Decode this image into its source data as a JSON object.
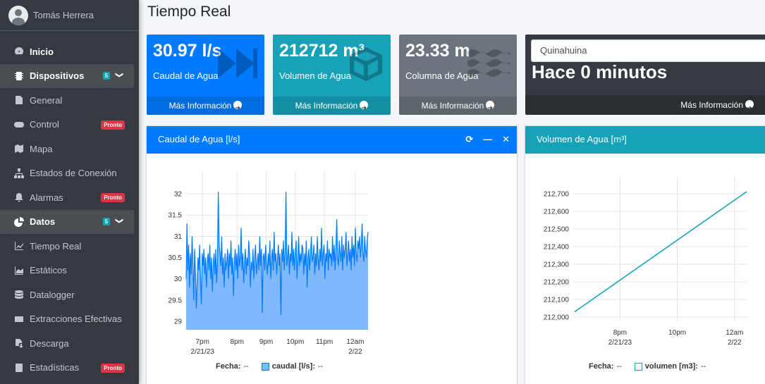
{
  "user": {
    "name": "Tomás Herrera"
  },
  "nav": [
    {
      "label": "Inicio",
      "icon": "dashboard-icon",
      "bold": true
    },
    {
      "label": "Dispositivos",
      "icon": "device-icon",
      "open": true,
      "count": "5"
    },
    {
      "label": "General",
      "icon": "file-icon"
    },
    {
      "label": "Control",
      "icon": "gamepad-icon",
      "badge": "Pronto"
    },
    {
      "label": "Mapa",
      "icon": "map-icon"
    },
    {
      "label": "Estados de Conexión",
      "icon": "sitemap-icon"
    },
    {
      "label": "Alarmas",
      "icon": "bell-icon",
      "badge": "Pronto"
    },
    {
      "label": "Datos",
      "icon": "pie-chart-icon",
      "open": true,
      "count": "5"
    },
    {
      "label": "Tiempo Real",
      "icon": "line-chart-icon"
    },
    {
      "label": "Estáticos",
      "icon": "area-chart-icon"
    },
    {
      "label": "Datalogger",
      "icon": "database-icon"
    },
    {
      "label": "Extracciones Efectivas",
      "icon": "envelope-icon"
    },
    {
      "label": "Descarga",
      "icon": "download-icon"
    },
    {
      "label": "Estadísticas",
      "icon": "calculator-icon",
      "badge": "Pronto"
    }
  ],
  "header": {
    "title": "Tiempo Real"
  },
  "boxes": {
    "caudal": {
      "value": "30.97 l/s",
      "label": "Caudal de Agua",
      "more": "Más Información"
    },
    "volumen": {
      "value": "212712 m³",
      "label": "Volumen de Agua",
      "more": "Más Información"
    },
    "columna": {
      "value": "23.33 m",
      "label": "Columna de Agua",
      "more": "Más Información"
    },
    "estado": {
      "location": "Quinahuina",
      "value": "Hace 0 minutos",
      "more": "Más Información"
    }
  },
  "cards": {
    "caudal_title": "Caudal de Agua [l/s]",
    "volumen_title": "Volumen de Agua [m³]",
    "caudal_legend_label": "Fecha:",
    "caudal_legend_value": "--",
    "caudal_series_label": "caudal [l/s]:",
    "caudal_series_value": "--",
    "volumen_legend_label": "Fecha:",
    "volumen_legend_value": "--",
    "volumen_series_label": "volumen [m3]:",
    "volumen_series_value": "--"
  },
  "colors": {
    "primary": "#007bff",
    "info": "#17a2b8",
    "secondary": "#6c757d",
    "dark": "#343a40",
    "danger": "#dc3545"
  },
  "chart_data": [
    {
      "type": "area",
      "title": "Caudal de Agua [l/s]",
      "ylim": [
        28.8,
        32.2
      ],
      "yticks": [
        29,
        29.5,
        30,
        30.5,
        31,
        31.5,
        32
      ],
      "xticks": [
        {
          "label": "7pm",
          "sub": "2/21/23",
          "t": 0.09
        },
        {
          "label": "8pm",
          "sub": "",
          "t": 0.28
        },
        {
          "label": "9pm",
          "sub": "",
          "t": 0.44
        },
        {
          "label": "10pm",
          "sub": "",
          "t": 0.6
        },
        {
          "label": "11pm",
          "sub": "",
          "t": 0.76
        },
        {
          "label": "12am",
          "sub": "2/22",
          "t": 0.93
        }
      ],
      "series": [
        {
          "name": "caudal [l/s]",
          "color": "#007bff",
          "values": [
            30.0,
            31.3,
            30.2,
            30.8,
            29.8,
            30.6,
            30.1,
            31.0,
            30.4,
            29.5,
            30.7,
            30.2,
            30.9,
            29.9,
            30.5,
            30.2,
            30.8,
            30.0,
            29.4,
            30.6,
            30.3,
            30.7,
            30.1,
            30.5,
            29.8,
            30.4,
            30.6,
            30.2,
            30.8,
            30.0,
            30.5,
            29.7,
            30.3,
            30.6,
            30.1,
            30.7,
            29.9,
            30.4,
            30.2,
            30.8,
            30.6,
            30.3,
            31.0,
            30.1,
            30.5,
            29.8,
            30.6,
            30.2,
            30.4,
            30.7,
            30.0,
            30.6,
            30.3,
            30.9,
            30.1,
            30.5,
            29.6,
            30.4,
            30.7,
            30.2,
            30.6,
            30.0,
            30.8,
            30.3,
            30.5,
            31.2,
            30.2,
            30.6,
            29.9,
            30.4,
            30.7,
            30.1,
            30.5,
            30.3,
            30.9,
            30.6,
            29.8,
            30.4,
            30.2,
            30.7,
            30.0,
            30.5,
            30.8,
            30.1,
            30.4,
            30.6,
            30.2,
            31.0,
            30.3,
            30.7,
            29.9,
            30.5,
            30.6,
            30.2,
            30.8,
            30.4,
            30.1,
            30.6,
            30.3,
            30.9,
            30.0,
            30.5,
            30.7,
            30.2,
            31.1,
            30.4,
            30.6,
            30.1,
            30.5,
            30.8,
            30.3,
            30.6,
            30.0,
            30.7,
            30.4,
            30.9,
            30.2,
            30.6,
            31.0,
            30.3,
            30.5,
            30.8,
            30.1,
            30.6,
            30.4,
            31.1,
            30.3,
            30.7,
            30.2,
            30.6,
            30.9,
            30.0,
            30.5,
            31.0,
            30.3,
            30.6,
            30.4,
            30.8,
            30.7,
            30.1,
            30.6,
            30.3,
            30.9,
            29.8,
            30.5,
            30.7,
            30.2,
            30.6,
            31.0,
            30.4,
            30.5,
            30.8,
            30.1,
            30.6,
            30.3,
            31.0,
            30.5,
            30.2,
            30.7,
            30.4,
            31.2,
            30.3,
            30.6,
            30.8,
            30.0,
            30.6,
            30.4,
            30.9,
            30.2,
            30.7,
            30.5,
            30.6,
            30.3,
            31.0,
            30.4,
            30.8,
            30.2,
            30.7,
            31.4,
            30.5,
            30.3,
            30.9,
            30.6,
            30.4,
            31.0,
            30.2,
            30.8,
            30.5,
            30.7,
            31.1,
            30.3,
            30.6,
            30.9,
            30.4,
            30.7,
            30.2,
            31.0,
            30.5,
            30.8,
            30.3,
            31.2,
            30.6,
            30.4,
            30.9,
            30.7,
            31.0,
            30.5,
            30.8,
            31.3,
            30.6,
            30.4,
            31.0,
            30.7,
            30.5,
            30.9,
            31.1
          ]
        }
      ],
      "spikes": [
        {
          "i": 38,
          "v": 32.05
        },
        {
          "i": 112,
          "v": 29.15
        },
        {
          "i": 118,
          "v": 32.05
        },
        {
          "i": 90,
          "v": 29.2
        },
        {
          "i": 12,
          "v": 29.3
        }
      ]
    },
    {
      "type": "line",
      "title": "Volumen de Agua [m³]",
      "ylim": [
        211980,
        212720
      ],
      "yticks": [
        212000,
        212100,
        212200,
        212300,
        212400,
        212500,
        212600,
        212700
      ],
      "yticklabels": [
        "212,000",
        "212,100",
        "212,200",
        "212,300",
        "212,400",
        "212,500",
        "212,600",
        "212,700"
      ],
      "xticks": [
        {
          "label": "8pm",
          "sub": "2/21/23",
          "t": 0.27
        },
        {
          "label": "10pm",
          "sub": "",
          "t": 0.6
        },
        {
          "label": "12am",
          "sub": "2/22",
          "t": 0.93
        }
      ],
      "series": [
        {
          "name": "volumen [m3]",
          "color": "#17a2b8",
          "start": 212030,
          "end": 212712
        }
      ]
    }
  ]
}
